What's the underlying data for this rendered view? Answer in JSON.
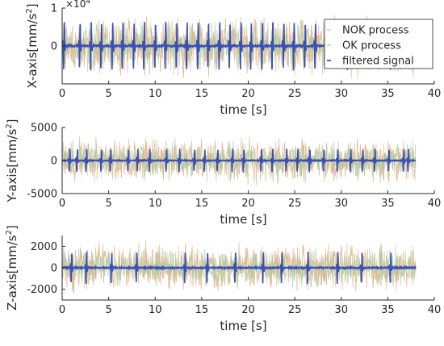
{
  "colors": {
    "nok": "#e8b48a",
    "ok": "#a8c8a0",
    "filtered": "#3a50b4",
    "axis": "#262626",
    "legend_border": "#262626"
  },
  "chart_data": [
    {
      "type": "line",
      "ylabel": "X-axis[mm/s",
      "ylabel_sup": "2",
      "ylabel_end": "]",
      "xlabel": "time [s]",
      "exponent_label": "×10",
      "exponent_sup": "4",
      "xlim": [
        0,
        40
      ],
      "ylim": [
        -1,
        1
      ],
      "x_ticks": [
        0,
        5,
        10,
        15,
        20,
        25,
        30,
        35,
        40
      ],
      "y_ticks": [
        -1,
        0,
        1
      ],
      "y_tick_labels": [
        "",
        "0",
        "1"
      ],
      "legend": {
        "position": "top-right",
        "entries": [
          {
            "label": "NOK process",
            "series": "NOK"
          },
          {
            "label": "OK process",
            "series": "OK"
          },
          {
            "label": "filtered signal",
            "series": "filtered"
          }
        ]
      },
      "series": [
        {
          "name": "NOK process",
          "key": "NOK",
          "duration": 38.0,
          "amplitude": 0.95
        },
        {
          "name": "OK process",
          "key": "OK",
          "duration": 38.0,
          "amplitude": 0.85
        },
        {
          "name": "filtered signal",
          "key": "filtered",
          "duration": 38.0,
          "pulse_times": [
            0.2,
            1.9,
            3.1,
            4.2,
            5.4,
            6.5,
            7.7,
            8.8,
            10.0,
            11.1,
            12.3,
            13.4,
            14.6,
            15.7,
            16.9,
            18.0,
            19.2,
            20.3,
            21.5,
            22.6,
            23.8,
            24.9,
            26.1,
            27.2,
            28.4,
            29.5,
            30.7,
            31.8,
            33.0,
            34.1,
            35.3,
            36.4,
            37.5
          ],
          "pulse_peak": 0.75
        }
      ]
    },
    {
      "type": "line",
      "ylabel": "Y-axis[mm/s",
      "ylabel_sup": "2",
      "ylabel_end": "]",
      "xlabel": "time [s]",
      "xlim": [
        0,
        40
      ],
      "ylim": [
        -5000,
        5000
      ],
      "x_ticks": [
        0,
        5,
        10,
        15,
        20,
        25,
        30,
        35,
        40
      ],
      "y_ticks": [
        -5000,
        0,
        5000
      ],
      "y_tick_labels": [
        "-5000",
        "0",
        "5000"
      ],
      "series": [
        {
          "name": "NOK process",
          "key": "NOK",
          "duration": 38.0,
          "amplitude": 4200
        },
        {
          "name": "OK process",
          "key": "OK",
          "duration": 38.0,
          "amplitude": 3800
        },
        {
          "name": "filtered signal",
          "key": "filtered",
          "duration": 38.0,
          "pulse_times": [
            0.8,
            1.6,
            2.6,
            4.2,
            5.2,
            7.1,
            8.1,
            9.4,
            11.2,
            12.6,
            14.2,
            15.3,
            16.7,
            18.3,
            19.5,
            21.4,
            22.6,
            24.1,
            25.3,
            26.6,
            28.1,
            29.6,
            31.0,
            32.3,
            33.6,
            35.1,
            36.7,
            37.2
          ],
          "pulse_peak": 2100
        }
      ]
    },
    {
      "type": "line",
      "ylabel": "Z-axis[mm/s",
      "ylabel_sup": "2",
      "ylabel_end": "]",
      "xlabel": "time [s]",
      "xlim": [
        0,
        40
      ],
      "ylim": [
        -3000,
        3000
      ],
      "x_ticks": [
        0,
        5,
        10,
        15,
        20,
        25,
        30,
        35,
        40
      ],
      "y_ticks": [
        -2000,
        0,
        2000
      ],
      "y_tick_labels": [
        "-2000",
        "0",
        "2000"
      ],
      "series": [
        {
          "name": "NOK process",
          "key": "NOK",
          "duration": 38.0,
          "amplitude": 2700
        },
        {
          "name": "OK process",
          "key": "OK",
          "duration": 38.0,
          "amplitude": 2400
        },
        {
          "name": "filtered signal",
          "key": "filtered",
          "duration": 38.0,
          "pulse_times": [
            1.0,
            2.6,
            5.3,
            8.0,
            13.2,
            15.6,
            18.6,
            21.6,
            23.6,
            26.4,
            29.6,
            32.2,
            35.3
          ],
          "pulse_peak": 1750
        }
      ]
    }
  ]
}
